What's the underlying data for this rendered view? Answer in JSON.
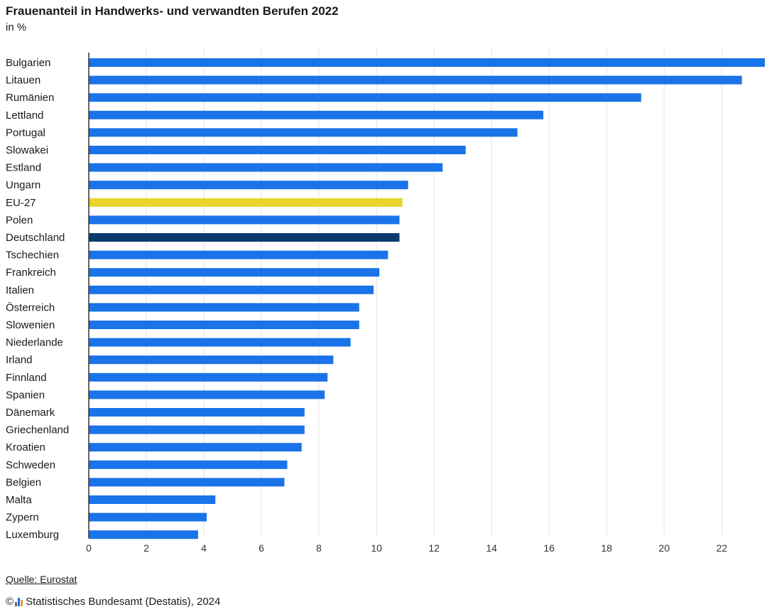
{
  "header": {
    "title": "Frauenanteil in Handwerks- und verwandten Berufen 2022",
    "subtitle": "in %"
  },
  "footer": {
    "source": "Quelle: Eurostat",
    "copyright_symbol": "©",
    "credit": "Statistisches Bundesamt (Destatis), 2024"
  },
  "colors": {
    "bar": "#1a73e8",
    "eu": "#e8d42a",
    "germany": "#0b3a6e",
    "grid": "#e3e3e3",
    "axis": "#333333"
  },
  "chart_data": {
    "type": "bar",
    "orientation": "horizontal",
    "title": "Frauenanteil in Handwerks- und verwandten Berufen 2022",
    "ylabel": "",
    "xlabel": "",
    "unit": "in %",
    "xlim": [
      0,
      23.5
    ],
    "xticks": [
      0,
      2,
      4,
      6,
      8,
      10,
      12,
      14,
      16,
      18,
      20,
      22
    ],
    "grid": true,
    "categories": [
      "Bulgarien",
      "Litauen",
      "Rumänien",
      "Lettland",
      "Portugal",
      "Slowakei",
      "Estland",
      "Ungarn",
      "EU-27",
      "Polen",
      "Deutschland",
      "Tschechien",
      "Frankreich",
      "Italien",
      "Österreich",
      "Slowenien",
      "Niederlande",
      "Irland",
      "Finnland",
      "Spanien",
      "Dänemark",
      "Griechenland",
      "Kroatien",
      "Schweden",
      "Belgien",
      "Malta",
      "Zypern",
      "Luxemburg"
    ],
    "values": [
      23.5,
      22.7,
      19.2,
      15.8,
      14.9,
      13.1,
      12.3,
      11.1,
      10.9,
      10.8,
      10.8,
      10.4,
      10.1,
      9.9,
      9.4,
      9.4,
      9.1,
      8.5,
      8.3,
      8.2,
      7.5,
      7.5,
      7.4,
      6.9,
      6.8,
      4.4,
      4.1,
      3.8
    ],
    "highlight": {
      "EU-27": "eu",
      "Deutschland": "germany"
    }
  }
}
